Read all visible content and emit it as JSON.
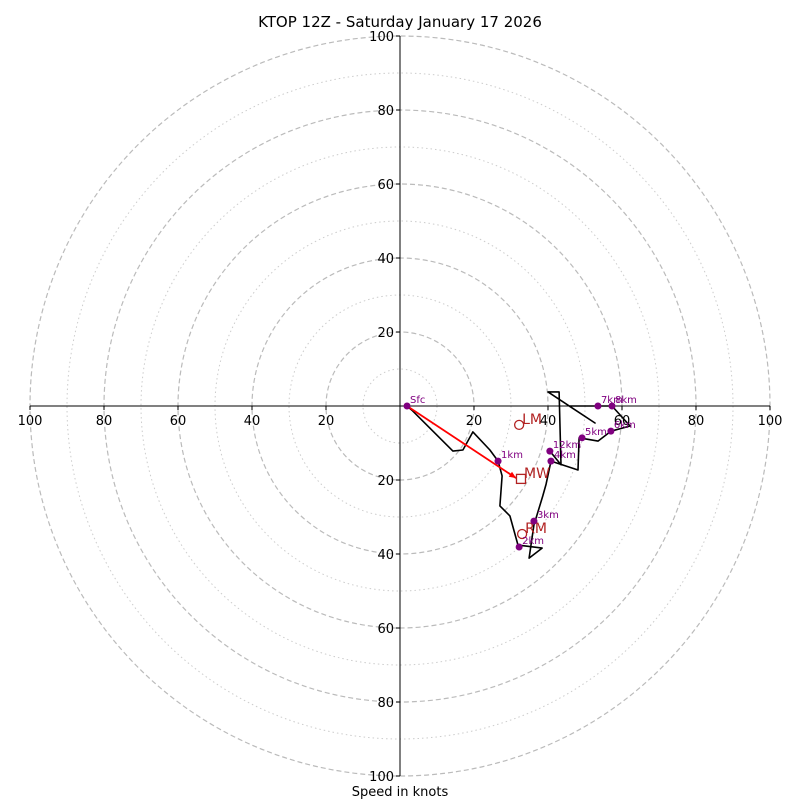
{
  "chart_data": {
    "type": "line",
    "subtype": "hodograph",
    "title": "KTOP 12Z - Saturday January 17 2026",
    "xlabel": "Speed in knots",
    "ylabel": "",
    "range_knots": 100,
    "ring_major": [
      20,
      40,
      60,
      80,
      100
    ],
    "ring_minor": [
      10,
      30,
      50,
      70,
      90
    ],
    "x_ticks": [
      100,
      80,
      60,
      40,
      20,
      20,
      40,
      60,
      80,
      100
    ],
    "x_tick_values": [
      -100,
      -80,
      -60,
      -40,
      -20,
      20,
      40,
      60,
      80,
      100
    ],
    "y_ticks": [
      100,
      80,
      60,
      40,
      20,
      20,
      40,
      60,
      80,
      100
    ],
    "y_tick_values": [
      100,
      80,
      60,
      40,
      20,
      -20,
      -40,
      -60,
      -80,
      -100
    ],
    "grid": true,
    "colors": {
      "hodograph": "#000000",
      "height_markers": "#800080",
      "storm_motion": "#b22222",
      "shear_vector": "#ff0000",
      "ring": "#bbbbbb"
    },
    "hodograph_uv": [
      [
        1.9,
        0
      ],
      [
        3.2,
        -1.1
      ],
      [
        14.3,
        -12.2
      ],
      [
        17.0,
        -11.9
      ],
      [
        19.7,
        -7.0
      ],
      [
        24.3,
        -11.9
      ],
      [
        26.5,
        -14.9
      ],
      [
        27.6,
        -18.9
      ],
      [
        27.0,
        -27.0
      ],
      [
        29.7,
        -29.7
      ],
      [
        31.9,
        -37.6
      ],
      [
        38.4,
        -38.4
      ],
      [
        34.9,
        -41.1
      ],
      [
        36.2,
        -32.2
      ],
      [
        38.6,
        -24.3
      ],
      [
        39.5,
        -21.1
      ],
      [
        40.8,
        -14.9
      ],
      [
        48.1,
        -17.3
      ],
      [
        48.4,
        -8.6
      ],
      [
        53.5,
        -9.5
      ],
      [
        57.0,
        -6.8
      ],
      [
        62.2,
        -5.4
      ],
      [
        57.3,
        0
      ],
      [
        53.5,
        0
      ],
      [
        45.7,
        0
      ],
      [
        52.7,
        -4.6
      ],
      [
        40.0,
        3.8
      ],
      [
        43.0,
        3.8
      ],
      [
        43.5,
        -15.9
      ],
      [
        40.5,
        -12.2
      ]
    ],
    "height_markers": [
      {
        "label": "Sfc",
        "u": 1.9,
        "v": 0
      },
      {
        "label": "1km",
        "u": 26.5,
        "v": -14.9
      },
      {
        "label": "2km",
        "u": 32.2,
        "v": -38.1
      },
      {
        "label": "3km",
        "u": 36.2,
        "v": -31.1
      },
      {
        "label": "4km",
        "u": 40.8,
        "v": -14.9
      },
      {
        "label": "5km",
        "u": 49.2,
        "v": -8.6
      },
      {
        "label": "6km",
        "u": 57.0,
        "v": -6.8
      },
      {
        "label": "7km",
        "u": 53.5,
        "v": 0
      },
      {
        "label": "8km",
        "u": 57.3,
        "v": 0
      },
      {
        "label": "12km",
        "u": 40.5,
        "v": -12.2
      }
    ],
    "storm_motions": [
      {
        "label": "LM",
        "u": 32.2,
        "v": -5.1,
        "marker": "circle"
      },
      {
        "label": "RM",
        "u": 33.0,
        "v": -34.6,
        "marker": "circle"
      },
      {
        "label": "MW",
        "u": 32.7,
        "v": -19.7,
        "marker": "square"
      }
    ],
    "shear_vector": {
      "from": [
        1.9,
        0
      ],
      "to": [
        31.4,
        -19.5
      ]
    }
  }
}
